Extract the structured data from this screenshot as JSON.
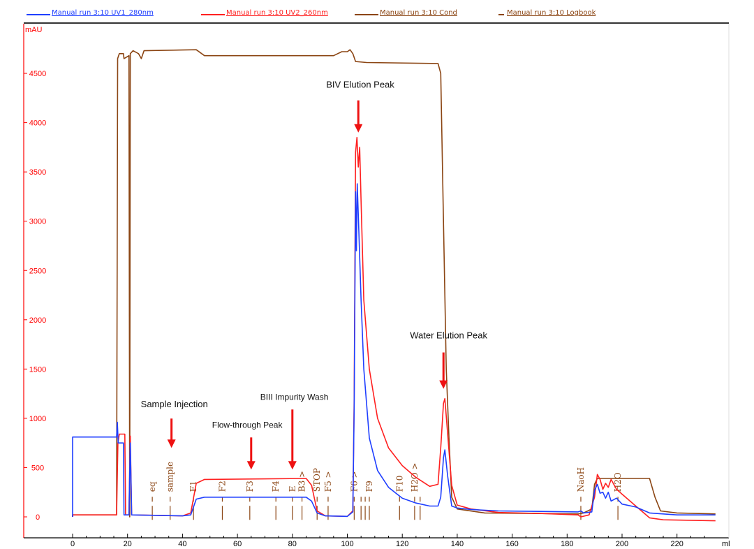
{
  "legend": [
    {
      "label": "Manual run 3:10  UV1_280nm",
      "color": "#1f3fff"
    },
    {
      "label": "Manual run 3:10  UV2_260nm",
      "color": "#ff2020"
    },
    {
      "label": "Manual run 3:10  Cond",
      "color": "#8b4513"
    },
    {
      "label": "Manual run 3:10  Logbook",
      "color": "#8b4513"
    }
  ],
  "chart_data": {
    "type": "line",
    "ylabel": "mAU",
    "xlabel": "ml",
    "xlim": [
      -7,
      235
    ],
    "ylim": [
      -50,
      5200
    ],
    "x_ticks": [
      0,
      20,
      40,
      60,
      80,
      100,
      120,
      140,
      160,
      180,
      200,
      220
    ],
    "y_ticks": [
      0,
      500,
      1000,
      1500,
      2000,
      2500,
      3000,
      3500,
      4000,
      4500
    ],
    "grid": false,
    "legend_position": "top",
    "series": [
      {
        "name": "Manual run 3:10  UV1_280nm",
        "color": "#1f3fff",
        "points": [
          [
            0,
            0
          ],
          [
            0,
            810
          ],
          [
            16,
            810
          ],
          [
            16.3,
            960
          ],
          [
            16.6,
            750
          ],
          [
            18.5,
            750
          ],
          [
            18.7,
            20
          ],
          [
            20.5,
            20
          ],
          [
            21,
            750
          ],
          [
            21.5,
            20
          ],
          [
            40,
            10
          ],
          [
            43,
            20
          ],
          [
            45,
            180
          ],
          [
            48,
            200
          ],
          [
            85,
            200
          ],
          [
            87,
            160
          ],
          [
            89,
            40
          ],
          [
            92,
            10
          ],
          [
            100,
            5
          ],
          [
            102,
            50
          ],
          [
            102.5,
            1100
          ],
          [
            103,
            3300
          ],
          [
            103.3,
            2700
          ],
          [
            103.6,
            3380
          ],
          [
            104.2,
            2900
          ],
          [
            105,
            2200
          ],
          [
            106,
            1500
          ],
          [
            108,
            800
          ],
          [
            111,
            470
          ],
          [
            115,
            300
          ],
          [
            120,
            190
          ],
          [
            125,
            140
          ],
          [
            130,
            110
          ],
          [
            133,
            110
          ],
          [
            134,
            200
          ],
          [
            135,
            600
          ],
          [
            135.5,
            680
          ],
          [
            136.5,
            420
          ],
          [
            138,
            110
          ],
          [
            140,
            90
          ],
          [
            145,
            75
          ],
          [
            155,
            60
          ],
          [
            170,
            55
          ],
          [
            184,
            50
          ],
          [
            185,
            60
          ],
          [
            186,
            40
          ],
          [
            189,
            50
          ],
          [
            190,
            270
          ],
          [
            191,
            330
          ],
          [
            192,
            240
          ],
          [
            193,
            250
          ],
          [
            194,
            190
          ],
          [
            195,
            250
          ],
          [
            196,
            160
          ],
          [
            198,
            190
          ],
          [
            200,
            130
          ],
          [
            205,
            100
          ],
          [
            210,
            40
          ],
          [
            220,
            20
          ],
          [
            234,
            20
          ]
        ]
      },
      {
        "name": "Manual run 3:10  UV2_260nm",
        "color": "#ff2020",
        "points": [
          [
            0,
            0
          ],
          [
            0,
            20
          ],
          [
            16,
            20
          ],
          [
            16.5,
            750
          ],
          [
            17,
            840
          ],
          [
            19,
            840
          ],
          [
            19.3,
            20
          ],
          [
            20.5,
            20
          ],
          [
            21,
            820
          ],
          [
            21.5,
            20
          ],
          [
            40,
            10
          ],
          [
            43,
            40
          ],
          [
            45,
            340
          ],
          [
            48,
            380
          ],
          [
            85,
            390
          ],
          [
            87,
            320
          ],
          [
            89,
            60
          ],
          [
            92,
            10
          ],
          [
            100,
            5
          ],
          [
            102,
            60
          ],
          [
            102.5,
            1200
          ],
          [
            103,
            3700
          ],
          [
            103.5,
            3850
          ],
          [
            104,
            3550
          ],
          [
            104.5,
            3750
          ],
          [
            105,
            3200
          ],
          [
            106,
            2200
          ],
          [
            108,
            1500
          ],
          [
            111,
            1000
          ],
          [
            115,
            700
          ],
          [
            120,
            520
          ],
          [
            125,
            400
          ],
          [
            130,
            310
          ],
          [
            133,
            330
          ],
          [
            134,
            700
          ],
          [
            135,
            1150
          ],
          [
            135.5,
            1200
          ],
          [
            136.5,
            850
          ],
          [
            138,
            320
          ],
          [
            140,
            120
          ],
          [
            145,
            80
          ],
          [
            155,
            45
          ],
          [
            170,
            35
          ],
          [
            184,
            20
          ],
          [
            185,
            0
          ],
          [
            188,
            20
          ],
          [
            190,
            200
          ],
          [
            191,
            430
          ],
          [
            192,
            380
          ],
          [
            193,
            280
          ],
          [
            194,
            340
          ],
          [
            195,
            300
          ],
          [
            196,
            380
          ],
          [
            198,
            280
          ],
          [
            200,
            230
          ],
          [
            205,
            110
          ],
          [
            210,
            -10
          ],
          [
            215,
            -30
          ],
          [
            234,
            -40
          ]
        ]
      },
      {
        "name": "Manual run 3:10  Cond",
        "color": "#8b4513",
        "points": [
          [
            0,
            0
          ],
          [
            0,
            20
          ],
          [
            16,
            20
          ],
          [
            16.4,
            4650
          ],
          [
            17,
            4700
          ],
          [
            18.5,
            4700
          ],
          [
            18.7,
            4650
          ],
          [
            20.5,
            4680
          ],
          [
            20.8,
            0
          ],
          [
            21,
            4700
          ],
          [
            22,
            4730
          ],
          [
            24,
            4700
          ],
          [
            25,
            4650
          ],
          [
            26,
            4730
          ],
          [
            45,
            4740
          ],
          [
            48,
            4680
          ],
          [
            95,
            4680
          ],
          [
            98,
            4720
          ],
          [
            100,
            4720
          ],
          [
            101,
            4740
          ],
          [
            102,
            4700
          ],
          [
            103,
            4620
          ],
          [
            107,
            4610
          ],
          [
            133,
            4600
          ],
          [
            134,
            4500
          ],
          [
            135,
            3000
          ],
          [
            136,
            1500
          ],
          [
            137,
            800
          ],
          [
            138,
            200
          ],
          [
            140,
            80
          ],
          [
            150,
            40
          ],
          [
            184,
            30
          ],
          [
            186,
            40
          ],
          [
            189,
            80
          ],
          [
            190,
            330
          ],
          [
            191,
            390
          ],
          [
            210,
            390
          ],
          [
            212,
            200
          ],
          [
            214,
            60
          ],
          [
            220,
            40
          ],
          [
            234,
            30
          ]
        ]
      }
    ],
    "logbook": [
      {
        "x": 29,
        "label": "eq"
      },
      {
        "x": 35.5,
        "label": "sample"
      },
      {
        "x": 44,
        "label": "F1"
      },
      {
        "x": 54.5,
        "label": "F2"
      },
      {
        "x": 64.5,
        "label": "F3"
      },
      {
        "x": 74,
        "label": "F4"
      },
      {
        "x": 80,
        "label": "E"
      },
      {
        "x": 83.5,
        "label": "B3 >"
      },
      {
        "x": 89,
        "label": "STOP"
      },
      {
        "x": 93,
        "label": "F5 >"
      },
      {
        "x": 102.5,
        "label": "F6 >"
      },
      {
        "x": 105,
        "label": ""
      },
      {
        "x": 106.5,
        "label": ""
      },
      {
        "x": 108,
        "label": "F9"
      },
      {
        "x": 119,
        "label": "F10"
      },
      {
        "x": 124.5,
        "label": "H2O >"
      },
      {
        "x": 126.5,
        "label": ""
      },
      {
        "x": 185,
        "label": "NaoH"
      },
      {
        "x": 198.5,
        "label": "H2O"
      }
    ],
    "annotations": [
      {
        "text": "BIV Elution Peak",
        "arrow_x": 104,
        "arrow_y": 3900
      },
      {
        "text": "Water Elution Peak",
        "arrow_x": 135,
        "arrow_y": 1300
      },
      {
        "text": "Sample Injection",
        "arrow_x": 36,
        "arrow_y": 700
      },
      {
        "text": "Flow-through Peak",
        "arrow_x": 65,
        "arrow_y": 480
      },
      {
        "text": "BIII Impurity Wash",
        "arrow_x": 80,
        "arrow_y": 480
      }
    ]
  }
}
